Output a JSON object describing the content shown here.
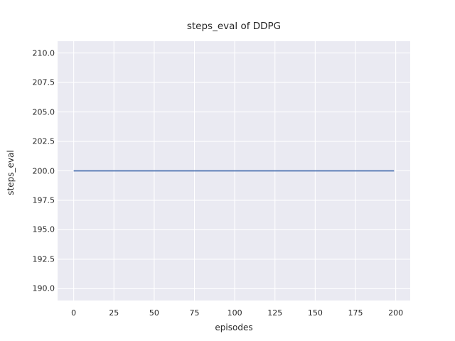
{
  "chart_data": {
    "type": "line",
    "title": "steps_eval of DDPG",
    "xlabel": "episodes",
    "ylabel": "steps_eval",
    "x_ticks": {
      "values": [
        0,
        25,
        50,
        75,
        100,
        125,
        150,
        175,
        200
      ],
      "labels": [
        "0",
        "25",
        "50",
        "75",
        "100",
        "125",
        "150",
        "175",
        "200"
      ]
    },
    "y_ticks": {
      "values": [
        190.0,
        192.5,
        195.0,
        197.5,
        200.0,
        202.5,
        205.0,
        207.5,
        210.0
      ],
      "labels": [
        "190.0",
        "192.5",
        "195.0",
        "197.5",
        "200.0",
        "202.5",
        "205.0",
        "207.5",
        "210.0"
      ]
    },
    "xlim": [
      -10,
      209
    ],
    "ylim": [
      189,
      211
    ],
    "grid": true,
    "legend": "none",
    "style": {
      "plot_background": "#EAEAF2",
      "grid_color": "#FFFFFF",
      "text_color": "#262626",
      "line_width": 1.8,
      "grid_width": 1.1
    },
    "series": [
      {
        "name": "steps_eval",
        "color": "#4C72B0",
        "x": [
          0,
          199
        ],
        "y": [
          200.0,
          200.0
        ]
      }
    ]
  }
}
